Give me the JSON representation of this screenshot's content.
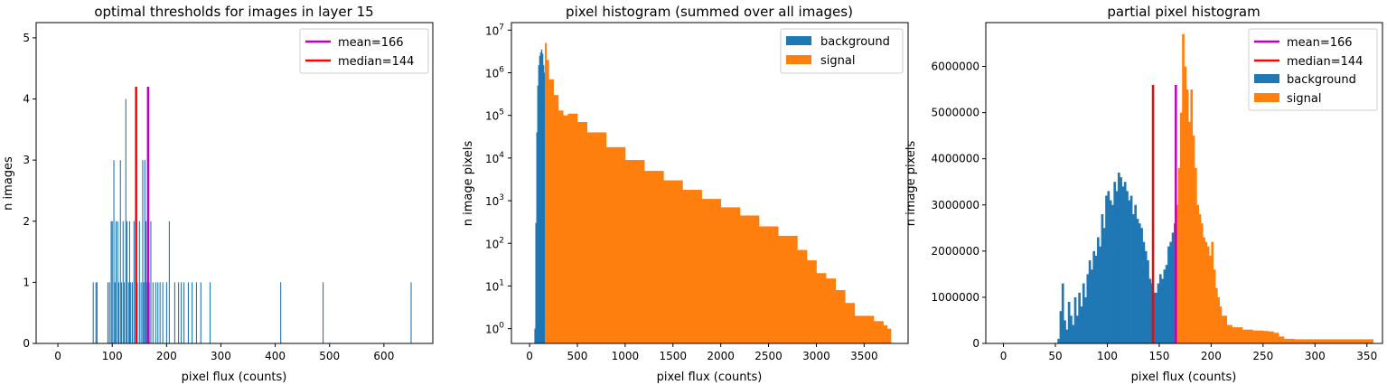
{
  "chart_data": [
    {
      "type": "bar",
      "title": "optimal thresholds for images in layer 15",
      "xlabel": "pixel flux (counts)",
      "ylabel": "n images",
      "xlim": [
        -40,
        690
      ],
      "ylim": [
        0,
        5.25
      ],
      "xticks": [
        0,
        100,
        200,
        300,
        400,
        500,
        600
      ],
      "yticks": [
        0,
        1,
        2,
        3,
        4,
        5
      ],
      "grid": false,
      "legend_position": "top-right",
      "bar_color": "#1f77b4",
      "bars": [
        {
          "x": 65,
          "y": 1
        },
        {
          "x": 70,
          "y": 1
        },
        {
          "x": 72,
          "y": 1
        },
        {
          "x": 92,
          "y": 1
        },
        {
          "x": 95,
          "y": 1
        },
        {
          "x": 98,
          "y": 2
        },
        {
          "x": 100,
          "y": 2
        },
        {
          "x": 103,
          "y": 3
        },
        {
          "x": 105,
          "y": 1
        },
        {
          "x": 107,
          "y": 2
        },
        {
          "x": 110,
          "y": 2
        },
        {
          "x": 112,
          "y": 1
        },
        {
          "x": 115,
          "y": 3
        },
        {
          "x": 117,
          "y": 1
        },
        {
          "x": 120,
          "y": 2
        },
        {
          "x": 122,
          "y": 1
        },
        {
          "x": 125,
          "y": 4
        },
        {
          "x": 127,
          "y": 2
        },
        {
          "x": 130,
          "y": 1
        },
        {
          "x": 132,
          "y": 2
        },
        {
          "x": 134,
          "y": 1
        },
        {
          "x": 137,
          "y": 1
        },
        {
          "x": 140,
          "y": 2
        },
        {
          "x": 143,
          "y": 1
        },
        {
          "x": 146,
          "y": 1
        },
        {
          "x": 150,
          "y": 2
        },
        {
          "x": 153,
          "y": 1
        },
        {
          "x": 156,
          "y": 3
        },
        {
          "x": 158,
          "y": 1
        },
        {
          "x": 160,
          "y": 3
        },
        {
          "x": 162,
          "y": 2
        },
        {
          "x": 164,
          "y": 1
        },
        {
          "x": 166,
          "y": 3
        },
        {
          "x": 168,
          "y": 1
        },
        {
          "x": 171,
          "y": 2
        },
        {
          "x": 175,
          "y": 1
        },
        {
          "x": 180,
          "y": 1
        },
        {
          "x": 184,
          "y": 1
        },
        {
          "x": 188,
          "y": 1
        },
        {
          "x": 193,
          "y": 1
        },
        {
          "x": 200,
          "y": 1
        },
        {
          "x": 205,
          "y": 2
        },
        {
          "x": 215,
          "y": 1
        },
        {
          "x": 222,
          "y": 1
        },
        {
          "x": 227,
          "y": 1
        },
        {
          "x": 232,
          "y": 1
        },
        {
          "x": 240,
          "y": 1
        },
        {
          "x": 247,
          "y": 1
        },
        {
          "x": 255,
          "y": 1
        },
        {
          "x": 263,
          "y": 1
        },
        {
          "x": 280,
          "y": 1
        },
        {
          "x": 410,
          "y": 1
        },
        {
          "x": 488,
          "y": 1
        },
        {
          "x": 650,
          "y": 1
        }
      ],
      "vlines": [
        {
          "name": "mean=166",
          "x": 166,
          "y": 4.2,
          "color": "#bf00bf"
        },
        {
          "name": "median=144",
          "x": 144,
          "y": 4.2,
          "color": "#ff0000"
        }
      ]
    },
    {
      "type": "bar",
      "title": "pixel histogram (summed over all images)",
      "xlabel": "pixel flux (counts)",
      "ylabel": "n image pixels",
      "xscale": "linear",
      "yscale": "log",
      "xlim": [
        -190,
        3960
      ],
      "ylim": [
        0.45,
        15000000
      ],
      "xticks": [
        0,
        500,
        1000,
        1500,
        2000,
        2500,
        3000,
        3500
      ],
      "yticks": [
        1,
        10,
        100,
        1000,
        10000,
        100000,
        1000000,
        10000000
      ],
      "ytick_labels": [
        "10^0",
        "10^1",
        "10^2",
        "10^3",
        "10^4",
        "10^5",
        "10^6",
        "10^7"
      ],
      "grid": false,
      "legend_position": "top-right",
      "series": [
        {
          "name": "background",
          "color": "#1f77b4",
          "x": [
            50,
            60,
            70,
            80,
            90,
            100,
            110,
            120,
            130,
            140,
            150,
            160
          ],
          "y": [
            1,
            300,
            40000,
            500000,
            1500000,
            2500000,
            3000000,
            3500000,
            2800000,
            1500000,
            1000000,
            500000
          ]
        },
        {
          "name": "signal",
          "color": "#ff7f0e",
          "x": [
            160,
            175,
            200,
            250,
            300,
            350,
            400,
            500,
            600,
            800,
            1000,
            1200,
            1400,
            1600,
            1800,
            2000,
            2200,
            2400,
            2600,
            2800,
            2900,
            3000,
            3100,
            3200,
            3300,
            3400,
            3500,
            3600,
            3700,
            3740
          ],
          "y": [
            5000000,
            2000000,
            700000,
            300000,
            130000,
            100000,
            110000,
            70000,
            40000,
            18000,
            9000,
            5000,
            3000,
            1800,
            1100,
            700,
            450,
            250,
            150,
            70,
            40,
            20,
            15,
            8,
            4,
            2,
            2,
            1.5,
            1.2,
            1
          ]
        }
      ]
    },
    {
      "type": "bar",
      "title": "partial pixel histogram",
      "xlabel": "pixel flux (counts)",
      "ylabel": "n image pixels",
      "xlim": [
        -17,
        365
      ],
      "ylim": [
        0,
        6950000
      ],
      "xticks": [
        0,
        50,
        100,
        150,
        200,
        250,
        300,
        350
      ],
      "yticks": [
        0,
        1000000,
        2000000,
        3000000,
        4000000,
        5000000,
        6000000
      ],
      "grid": false,
      "legend_position": "top-right",
      "series": [
        {
          "name": "background",
          "color": "#1f77b4",
          "x": [
            50,
            52,
            54,
            56,
            58,
            60,
            62,
            64,
            66,
            68,
            70,
            72,
            74,
            76,
            78,
            80,
            82,
            84,
            86,
            88,
            90,
            92,
            94,
            96,
            98,
            100,
            102,
            104,
            106,
            108,
            110,
            112,
            114,
            116,
            118,
            120,
            122,
            124,
            126,
            128,
            130,
            132,
            134,
            136,
            138,
            140,
            142,
            144,
            146,
            148,
            150,
            152,
            154,
            156,
            158,
            160,
            162,
            164,
            166
          ],
          "y": [
            0,
            100000,
            700000,
            1300000,
            500000,
            300000,
            900000,
            600000,
            400000,
            1000000,
            600000,
            1100000,
            800000,
            1300000,
            1000000,
            1500000,
            1800000,
            1600000,
            2000000,
            1900000,
            2300000,
            2100000,
            2800000,
            2500000,
            3200000,
            3300000,
            3100000,
            3000000,
            3500000,
            3300000,
            3700000,
            3600000,
            3400000,
            3500000,
            3300000,
            3100000,
            3200000,
            2800000,
            3000000,
            2700000,
            2600000,
            2500000,
            2200000,
            2000000,
            1800000,
            1400000,
            1300000,
            1100000,
            1100000,
            1300000,
            1500000,
            1400000,
            1600000,
            1700000,
            2100000,
            2200000,
            2400000,
            2600000,
            2900000
          ]
        },
        {
          "name": "signal",
          "color": "#ff7f0e",
          "x": [
            166,
            168,
            170,
            172,
            174,
            176,
            178,
            180,
            182,
            184,
            186,
            188,
            190,
            192,
            194,
            196,
            198,
            200,
            202,
            204,
            206,
            208,
            210,
            215,
            220,
            230,
            240,
            250,
            255,
            260,
            265,
            270,
            280,
            300,
            320,
            340,
            348
          ],
          "y": [
            3000000,
            3800000,
            5000000,
            6700000,
            6000000,
            5500000,
            4800000,
            5500000,
            4500000,
            3800000,
            3000000,
            2800000,
            2600000,
            2300000,
            2200000,
            2100000,
            1900000,
            2200000,
            1600000,
            1200000,
            1000000,
            800000,
            600000,
            400000,
            350000,
            300000,
            280000,
            270000,
            260000,
            230000,
            150000,
            100000,
            90000,
            90000,
            90000,
            90000,
            90000
          ]
        }
      ],
      "vlines": [
        {
          "name": "mean=166",
          "x": 166,
          "y": 5600000,
          "color": "#bf00bf"
        },
        {
          "name": "median=144",
          "x": 144,
          "y": 5600000,
          "color": "#ff0000"
        }
      ]
    }
  ]
}
